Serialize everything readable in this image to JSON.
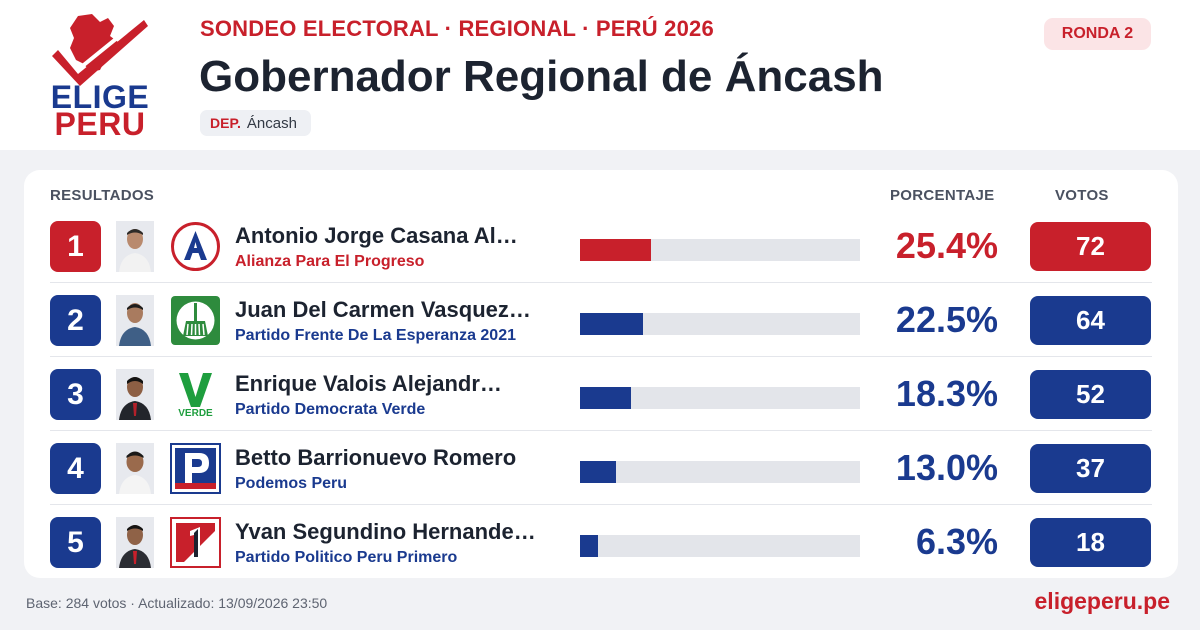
{
  "brand": {
    "line1": "ELIGE",
    "line2": "PERU",
    "site": "eligeperu.pe"
  },
  "header": {
    "kicker": "SONDEO ELECTORAL · REGIONAL · PERÚ 2026",
    "title": "Gobernador Regional de Áncash",
    "dep_label": "DEP.",
    "dep_value": "Áncash",
    "round": "RONDA 2"
  },
  "table": {
    "col_results": "RESULTADOS",
    "col_percent": "PORCENTAJE",
    "col_votes": "VOTOS",
    "rows": [
      {
        "rank": "1",
        "name": "Antonio Jorge Casana Al…",
        "party": "Alianza Para El Progreso",
        "percent_label": "25.4%",
        "percent": 25.4,
        "votes": "72",
        "color": "#c8202b",
        "party_logo": "app-logo"
      },
      {
        "rank": "2",
        "name": "Juan Del Carmen Vasquez…",
        "party": "Partido Frente De La Esperanza 2021",
        "percent_label": "22.5%",
        "percent": 22.5,
        "votes": "64",
        "color": "#1a3a8f",
        "party_logo": "broom-logo"
      },
      {
        "rank": "3",
        "name": "Enrique Valois Alejandr…",
        "party": "Partido Democrata Verde",
        "percent_label": "18.3%",
        "percent": 18.3,
        "votes": "52",
        "color": "#1a3a8f",
        "party_logo": "verde-logo",
        "logo_text": "VERDE"
      },
      {
        "rank": "4",
        "name": "Betto Barrionuevo Romero",
        "party": "Podemos Peru",
        "percent_label": "13.0%",
        "percent": 13.0,
        "votes": "37",
        "color": "#1a3a8f",
        "party_logo": "podemos-logo"
      },
      {
        "rank": "5",
        "name": "Yvan Segundino Hernande…",
        "party": "Partido Politico Peru Primero",
        "percent_label": "6.3%",
        "percent": 6.3,
        "votes": "18",
        "color": "#1a3a8f",
        "party_logo": "peru-primero-logo"
      }
    ]
  },
  "footer": {
    "base_text": "Base: 284 votos · Actualizado: 13/09/2026 23:50"
  }
}
